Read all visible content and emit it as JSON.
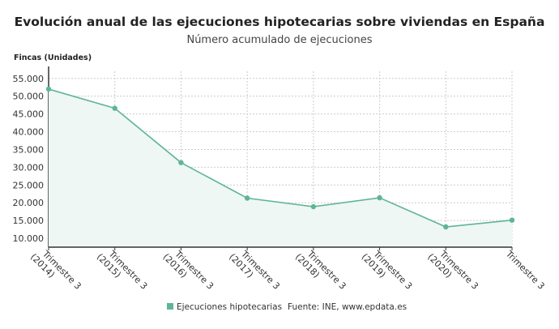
{
  "chart_data": {
    "type": "area",
    "title": "Evolución anual de las ejecuciones hipotecarias sobre viviendas en España",
    "subtitle": "Número acumulado de ejecuciones",
    "ylabel": "Fincas (Unidades)",
    "xlabel": "",
    "categories": [
      "Trimestre 3 (2014)",
      "Trimestre 3 (2015)",
      "Trimestre 3 (2016)",
      "Trimestre 3 (2017)",
      "Trimestre 3 (2018)",
      "Trimestre 3 (2019)",
      "Trimestre 3 (2020)",
      "Trimestre 3"
    ],
    "category_lines": [
      [
        "Trimestre 3",
        "(2014)"
      ],
      [
        "Trimestre 3",
        "(2015)"
      ],
      [
        "Trimestre 3",
        "(2016)"
      ],
      [
        "Trimestre 3",
        "(2017)"
      ],
      [
        "Trimestre 3",
        "(2018)"
      ],
      [
        "Trimestre 3",
        "(2019)"
      ],
      [
        "Trimestre 3",
        "(2020)"
      ],
      [
        "Trimestre 3",
        ""
      ]
    ],
    "series": [
      {
        "name": "Ejecuciones hipotecarias",
        "values": [
          52000,
          46600,
          31300,
          21300,
          18900,
          21400,
          13200,
          15100
        ],
        "color": "#5fb594"
      }
    ],
    "yticks": [
      10000,
      15000,
      20000,
      25000,
      30000,
      35000,
      40000,
      45000,
      50000,
      55000
    ],
    "ytick_labels": [
      "10.000",
      "15.000",
      "20.000",
      "25.000",
      "30.000",
      "35.000",
      "40.000",
      "45.000",
      "50.000",
      "55.000"
    ],
    "ylim": [
      7500,
      57000
    ],
    "grid": true,
    "legend_position": "bottom",
    "source": "Fuente: INE, www.epdata.es"
  }
}
